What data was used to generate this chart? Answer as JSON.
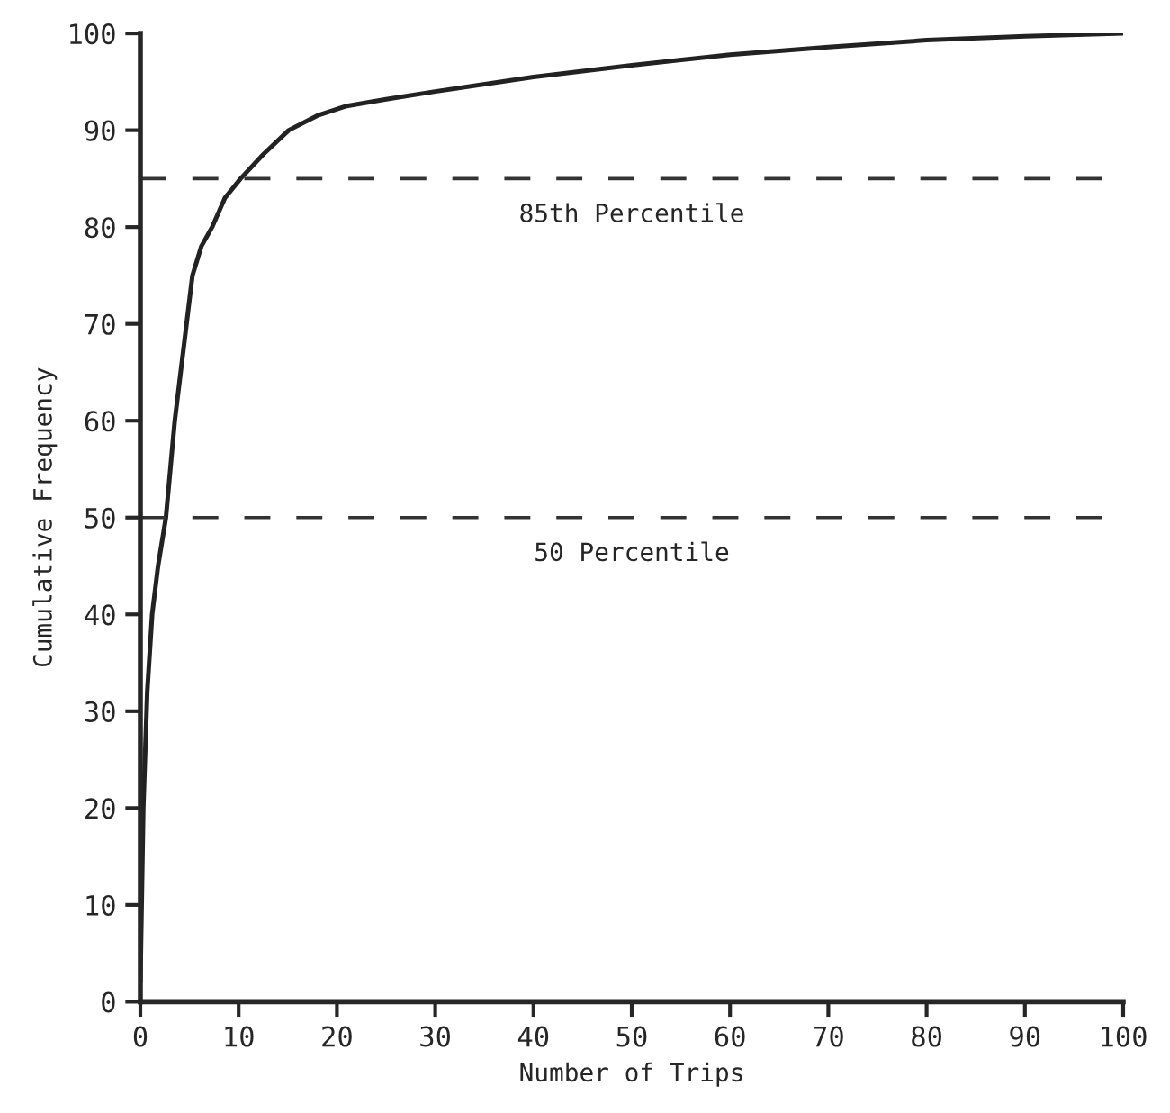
{
  "chart_data": {
    "type": "line",
    "xlabel": "Number of Trips",
    "ylabel": "Cumulative Frequency",
    "series": [
      {
        "color": "#222222",
        "x": [
          0,
          0.3,
          0.7,
          1.2,
          1.8,
          2.6,
          3.5,
          4.7,
          5.3,
          6.2,
          7.3,
          8.6,
          10.2,
          12.5,
          15.1,
          18,
          21,
          25,
          30,
          40,
          50,
          60,
          70,
          80,
          90,
          100
        ],
        "values": [
          2,
          20,
          32,
          40,
          45,
          50,
          60,
          70,
          75,
          78,
          80,
          83,
          85,
          87.5,
          90,
          91.5,
          92.5,
          93.2,
          94,
          95.5,
          96.7,
          97.8,
          98.6,
          99.3,
          99.7,
          100
        ]
      }
    ],
    "xlim": [
      0,
      100
    ],
    "xticks": [
      0,
      10,
      20,
      30,
      40,
      50,
      60,
      70,
      80,
      90,
      100
    ],
    "ylim": [
      0,
      100
    ],
    "yticks": [
      0,
      10,
      20,
      30,
      40,
      50,
      60,
      70,
      80,
      90,
      100
    ],
    "ref_lines": [
      {
        "axis": "y",
        "value": 85,
        "label": "85th Percentile",
        "line_style": "dashed",
        "color": "#333333"
      },
      {
        "axis": "y",
        "value": 50,
        "label": "50 Percentile",
        "line_style": "dashed",
        "color": "#333333"
      }
    ],
    "grid": false,
    "legend": false,
    "marker": "none",
    "line_style": "solid"
  }
}
